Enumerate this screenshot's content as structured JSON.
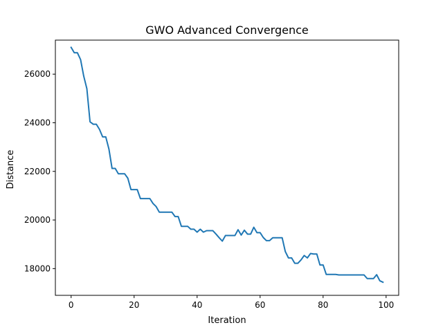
{
  "chart_data": {
    "type": "line",
    "title": "GWO Advanced Convergence",
    "xlabel": "Iteration",
    "ylabel": "Distance",
    "xlim": [
      -5,
      104
    ],
    "ylim": [
      16900,
      27400
    ],
    "xticks": [
      0,
      20,
      40,
      60,
      80,
      100
    ],
    "yticks": [
      18000,
      20000,
      22000,
      24000,
      26000
    ],
    "xtick_labels": [
      "0",
      "20",
      "40",
      "60",
      "80",
      "100"
    ],
    "ytick_labels": [
      "18000",
      "20000",
      "22000",
      "24000",
      "26000"
    ],
    "grid": false,
    "legend": "none",
    "series": [
      {
        "color": "#1f77b4",
        "x": [
          0,
          1,
          2,
          3,
          4,
          5,
          6,
          7,
          8,
          9,
          10,
          11,
          12,
          13,
          14,
          15,
          16,
          17,
          18,
          19,
          20,
          21,
          22,
          23,
          24,
          25,
          26,
          27,
          28,
          29,
          30,
          31,
          32,
          33,
          34,
          35,
          36,
          37,
          38,
          39,
          40,
          41,
          42,
          43,
          44,
          45,
          46,
          47,
          48,
          49,
          50,
          51,
          52,
          53,
          54,
          55,
          56,
          57,
          58,
          59,
          60,
          61,
          62,
          63,
          64,
          65,
          66,
          67,
          68,
          69,
          70,
          71,
          72,
          73,
          74,
          75,
          76,
          77,
          78,
          79,
          80,
          81,
          82,
          83,
          84,
          85,
          86,
          87,
          88,
          89,
          90,
          91,
          92,
          93,
          94,
          95,
          96,
          97,
          98,
          99
        ],
        "values": [
          27100,
          26880,
          26880,
          26600,
          25920,
          25400,
          24040,
          23940,
          23940,
          23730,
          23420,
          23420,
          22920,
          22120,
          22120,
          21900,
          21900,
          21900,
          21720,
          21250,
          21250,
          21250,
          20880,
          20880,
          20880,
          20880,
          20680,
          20550,
          20320,
          20320,
          20320,
          20320,
          20320,
          20140,
          20140,
          19740,
          19740,
          19740,
          19620,
          19620,
          19500,
          19620,
          19500,
          19560,
          19560,
          19560,
          19420,
          19270,
          19130,
          19360,
          19360,
          19360,
          19360,
          19600,
          19380,
          19580,
          19420,
          19420,
          19700,
          19480,
          19480,
          19280,
          19150,
          19150,
          19270,
          19270,
          19270,
          19270,
          18700,
          18440,
          18440,
          18220,
          18220,
          18360,
          18540,
          18440,
          18620,
          18600,
          18600,
          18150,
          18150,
          17760,
          17760,
          17760,
          17760,
          17740,
          17740,
          17740,
          17740,
          17740,
          17740,
          17740,
          17740,
          17740,
          17590,
          17590,
          17590,
          17750,
          17500,
          17440
        ]
      }
    ]
  }
}
